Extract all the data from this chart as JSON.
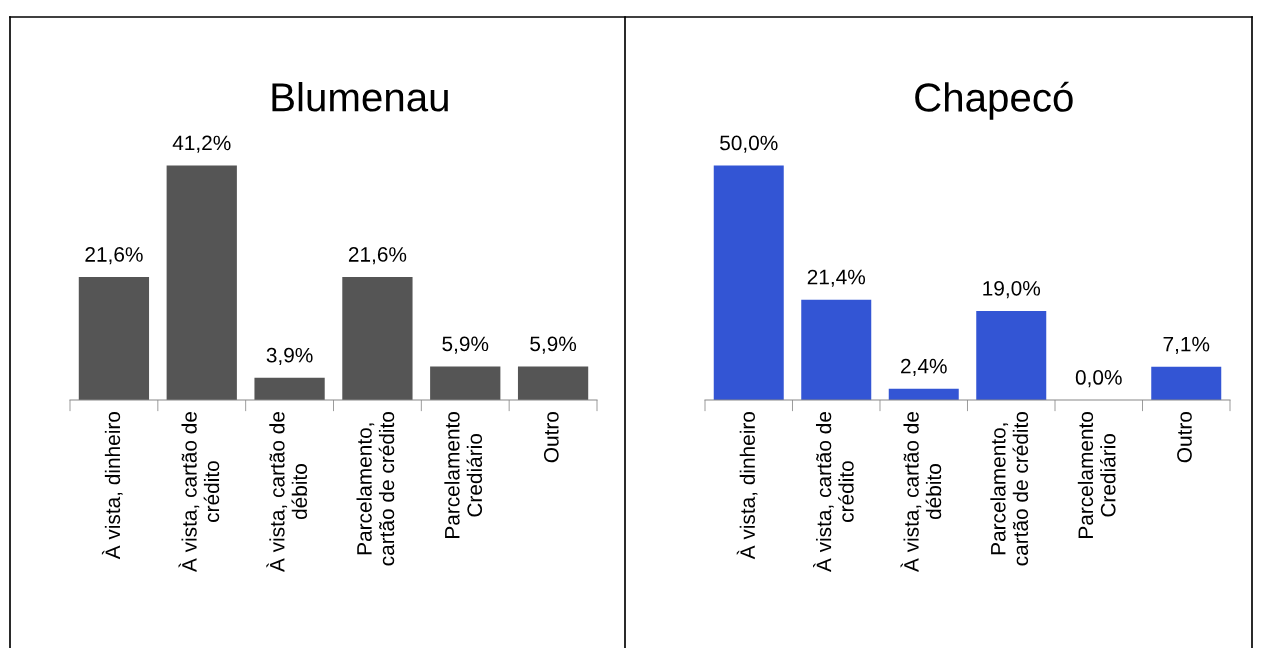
{
  "chart_data": [
    {
      "type": "bar",
      "title": "Blumenau",
      "categories": [
        "À vista, dinheiro",
        "À vista, cartão de\ncrédito",
        "À vista, cartão de\ndébito",
        "Parcelamento,\ncartão de crédito",
        "Parcelamento\nCrediário",
        "Outro"
      ],
      "values": [
        21.6,
        41.2,
        3.9,
        21.6,
        5.9,
        5.9
      ],
      "value_labels": [
        "21,6%",
        "41,2%",
        "3,9%",
        "21,6%",
        "5,9%",
        "5,9%"
      ],
      "color": "#555555",
      "grid": false,
      "legend": false
    },
    {
      "type": "bar",
      "title": "Chapecó",
      "categories": [
        "À vista, dinheiro",
        "À vista, cartão de\ncrédito",
        "À vista, cartão de\ndébito",
        "Parcelamento,\ncartão de crédito",
        "Parcelamento\nCrediário",
        "Outro"
      ],
      "values": [
        50.0,
        21.4,
        2.4,
        19.0,
        0.0,
        7.1
      ],
      "value_labels": [
        "50,0%",
        "21,4%",
        "2,4%",
        "19,0%",
        "0,0%",
        "7,1%"
      ],
      "color": "#3355d4",
      "grid": false,
      "legend": false
    }
  ]
}
